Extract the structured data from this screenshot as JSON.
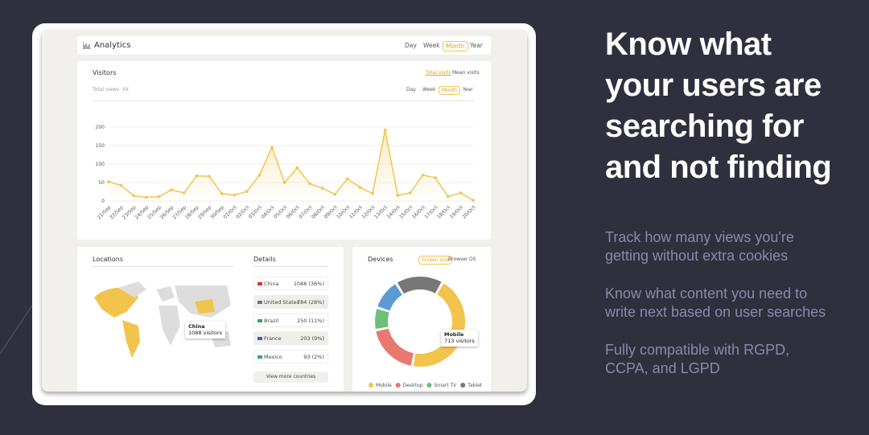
{
  "headline": [
    "Know what",
    "your users are",
    "searching for",
    "and not finding"
  ],
  "paragraphs": [
    [
      "Track how many views you're",
      "getting without extra cookies"
    ],
    [
      "Know what content you need to",
      "write next based on user searches"
    ],
    [
      "Fully compatible with RGPD,",
      "CCPA, and LGPD"
    ]
  ],
  "dashboard": {
    "header": {
      "title": "Analytics",
      "tabs": [
        "Day",
        "Week",
        "Month",
        "Year"
      ],
      "active_tab": 2
    },
    "visitors": {
      "title": "Visitors",
      "legend": [
        "Total visits",
        "Mean visits"
      ],
      "total": "Total views: XX",
      "tabs": [
        "Day",
        "Week",
        "Month",
        "Year"
      ],
      "active_tab": 2
    },
    "locations": {
      "title": "Locations",
      "tooltip": {
        "country": "China",
        "visitors": "1088 visitors"
      }
    },
    "details": {
      "title": "Details",
      "rows": [
        [
          "China",
          "1088 (36%)"
        ],
        [
          "United States",
          "784 (28%)"
        ],
        [
          "Brazil",
          "250 (11%)"
        ],
        [
          "France",
          "203 (9%)"
        ],
        [
          "Mexico",
          "93 (2%)"
        ]
      ],
      "button": "View more countries"
    },
    "devices": {
      "title": "Devices",
      "tabs": [
        "Screen size",
        "Browser",
        "OS"
      ],
      "active_tab": 0,
      "tooltip": {
        "label": "Mobile",
        "visitors": "713 visitors"
      }
    }
  },
  "chart_data": [
    {
      "type": "line",
      "categories": [
        "21/Sep",
        "22/Sep",
        "23/Sep",
        "24/Sep",
        "25/Sep",
        "26/Sep",
        "27/Sep",
        "28/Sep",
        "29/Sep",
        "30/Sep",
        "01/Oct",
        "02/Oct",
        "03/Oct",
        "04/Oct",
        "05/Oct",
        "06/Oct",
        "07/Oct",
        "08/Oct",
        "09/Oct",
        "10/Oct",
        "11/Oct",
        "12/Oct",
        "13/Oct",
        "14/Oct",
        "15/Oct",
        "16/Oct",
        "17/Oct",
        "18/Oct",
        "19/Oct",
        "20/Oct"
      ],
      "values": [
        52,
        42,
        14,
        10,
        12,
        30,
        22,
        68,
        67,
        20,
        16,
        26,
        70,
        145,
        50,
        90,
        47,
        35,
        18,
        60,
        37,
        20,
        192,
        15,
        22,
        70,
        63,
        12,
        22,
        2
      ],
      "color": "#f2c44d",
      "ylim": [
        0,
        200
      ],
      "yticks": [
        0,
        50,
        100,
        150,
        200
      ],
      "grid": true
    },
    {
      "type": "pie",
      "categories": [
        "Mobile",
        "Desktop",
        "Smart TV",
        null,
        "Tablet"
      ],
      "values": [
        44,
        19,
        8,
        11,
        17
      ],
      "colors": [
        "#f2c44d",
        "#e9786f",
        "#6cc07a",
        "#5b9bd5",
        "#777777"
      ]
    }
  ]
}
